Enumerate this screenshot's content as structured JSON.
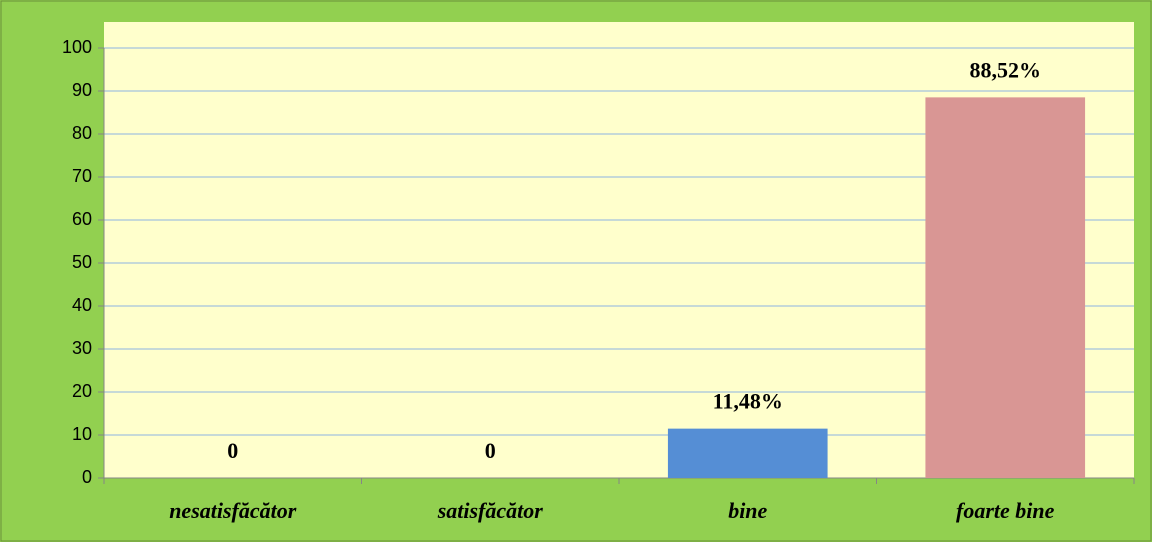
{
  "chart_data": {
    "type": "bar",
    "categories": [
      "nesatisfăcător",
      "satisfăcător",
      "bine",
      "foarte bine"
    ],
    "values": [
      0,
      0,
      11.48,
      88.52
    ],
    "value_labels": [
      "0",
      "0",
      "11,48%",
      "88,52%"
    ],
    "colors": [
      null,
      null,
      "#558ed5",
      "#d99694"
    ],
    "ylim": [
      0,
      100
    ],
    "yticks": [
      0,
      10,
      20,
      30,
      40,
      50,
      60,
      70,
      80,
      90,
      100
    ],
    "grid": true
  }
}
